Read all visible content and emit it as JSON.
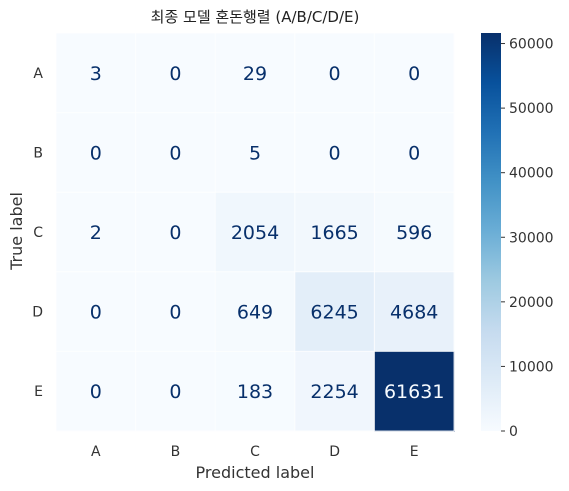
{
  "chart_data": {
    "type": "heatmap",
    "title": "최종 모델 혼돈행렬 (A/B/C/D/E)",
    "xlabel": "Predicted label",
    "ylabel": "True label",
    "x_categories": [
      "A",
      "B",
      "C",
      "D",
      "E"
    ],
    "y_categories": [
      "A",
      "B",
      "C",
      "D",
      "E"
    ],
    "values": [
      [
        3,
        0,
        29,
        0,
        0
      ],
      [
        0,
        0,
        5,
        0,
        0
      ],
      [
        2,
        0,
        2054,
        1665,
        596
      ],
      [
        0,
        0,
        649,
        6245,
        4684
      ],
      [
        0,
        0,
        183,
        2254,
        61631
      ]
    ],
    "colormap": "Blues",
    "colorbar": {
      "range": [
        0,
        61631
      ],
      "ticks": [
        0,
        10000,
        20000,
        30000,
        40000,
        50000,
        60000
      ]
    },
    "colors": {
      "low": "#f7fbff",
      "high": "#08306b"
    },
    "grid": true
  }
}
